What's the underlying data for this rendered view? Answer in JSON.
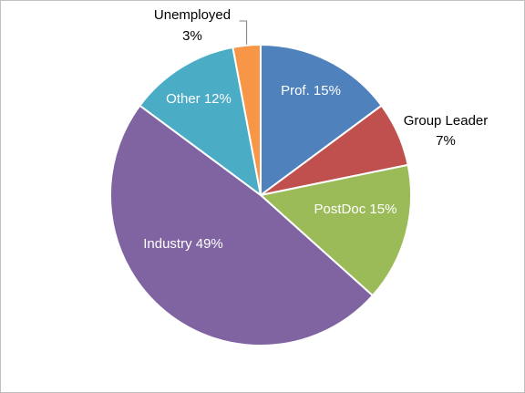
{
  "chart_data": {
    "type": "pie",
    "title": "",
    "start_angle_deg": 0,
    "direction": "clockwise",
    "slices": [
      {
        "name": "Prof.",
        "label": "Prof. 15%",
        "value": 15,
        "color": "#4f81bd",
        "label_position": "inside"
      },
      {
        "name": "Group Leader",
        "label_lines": [
          "Group Leader",
          "7%"
        ],
        "value": 7,
        "color": "#c0504d",
        "label_position": "outside"
      },
      {
        "name": "PostDoc",
        "label": "PostDoc 15%",
        "value": 15,
        "color": "#9bbb59",
        "label_position": "inside"
      },
      {
        "name": "Industry",
        "label": "Industry 49%",
        "value": 49,
        "color": "#8064a2",
        "label_position": "inside"
      },
      {
        "name": "Other",
        "label": "Other 12%",
        "value": 12,
        "color": "#4bacc6",
        "label_position": "inside"
      },
      {
        "name": "Unemployed",
        "label_lines": [
          "Unemployed",
          "3%"
        ],
        "value": 3,
        "color": "#f79646",
        "label_position": "outside",
        "leader_line": true
      }
    ]
  }
}
